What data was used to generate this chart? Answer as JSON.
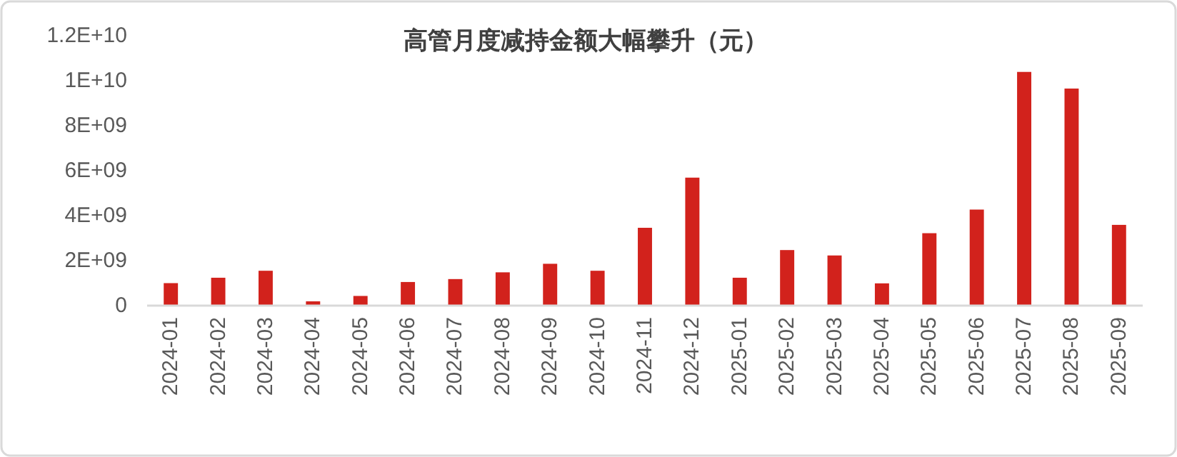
{
  "chart_data": {
    "type": "bar",
    "title": "高管月度减持金额大幅攀升（元）",
    "categories": [
      "2024-01",
      "2024-02",
      "2024-03",
      "2024-04",
      "2024-05",
      "2024-06",
      "2024-07",
      "2024-08",
      "2024-09",
      "2024-10",
      "2024-11",
      "2024-12",
      "2025-01",
      "2025-02",
      "2025-03",
      "2025-04",
      "2025-05",
      "2025-06",
      "2025-07",
      "2025-08",
      "2025-09"
    ],
    "values": [
      1000000000.0,
      1240000000.0,
      1550000000.0,
      190000000.0,
      430000000.0,
      1050000000.0,
      1180000000.0,
      1480000000.0,
      1860000000.0,
      1550000000.0,
      3460000000.0,
      5690000000.0,
      1240000000.0,
      2470000000.0,
      2230000000.0,
      990000000.0,
      3220000000.0,
      4270000000.0,
      10390000000.0,
      9650000000.0,
      3590000000.0
    ],
    "color": "#d2221c",
    "ylim": [
      0,
      12000000000.0
    ],
    "yticks": [
      {
        "value": 0,
        "label": "0"
      },
      {
        "value": 2000000000.0,
        "label": "2E+09"
      },
      {
        "value": 4000000000.0,
        "label": "4E+09"
      },
      {
        "value": 6000000000.0,
        "label": "6E+09"
      },
      {
        "value": 8000000000.0,
        "label": "8E+09"
      },
      {
        "value": 10000000000.0,
        "label": "1E+10"
      },
      {
        "value": 12000000000.0,
        "label": "1.2E+10"
      }
    ],
    "grid": false
  }
}
